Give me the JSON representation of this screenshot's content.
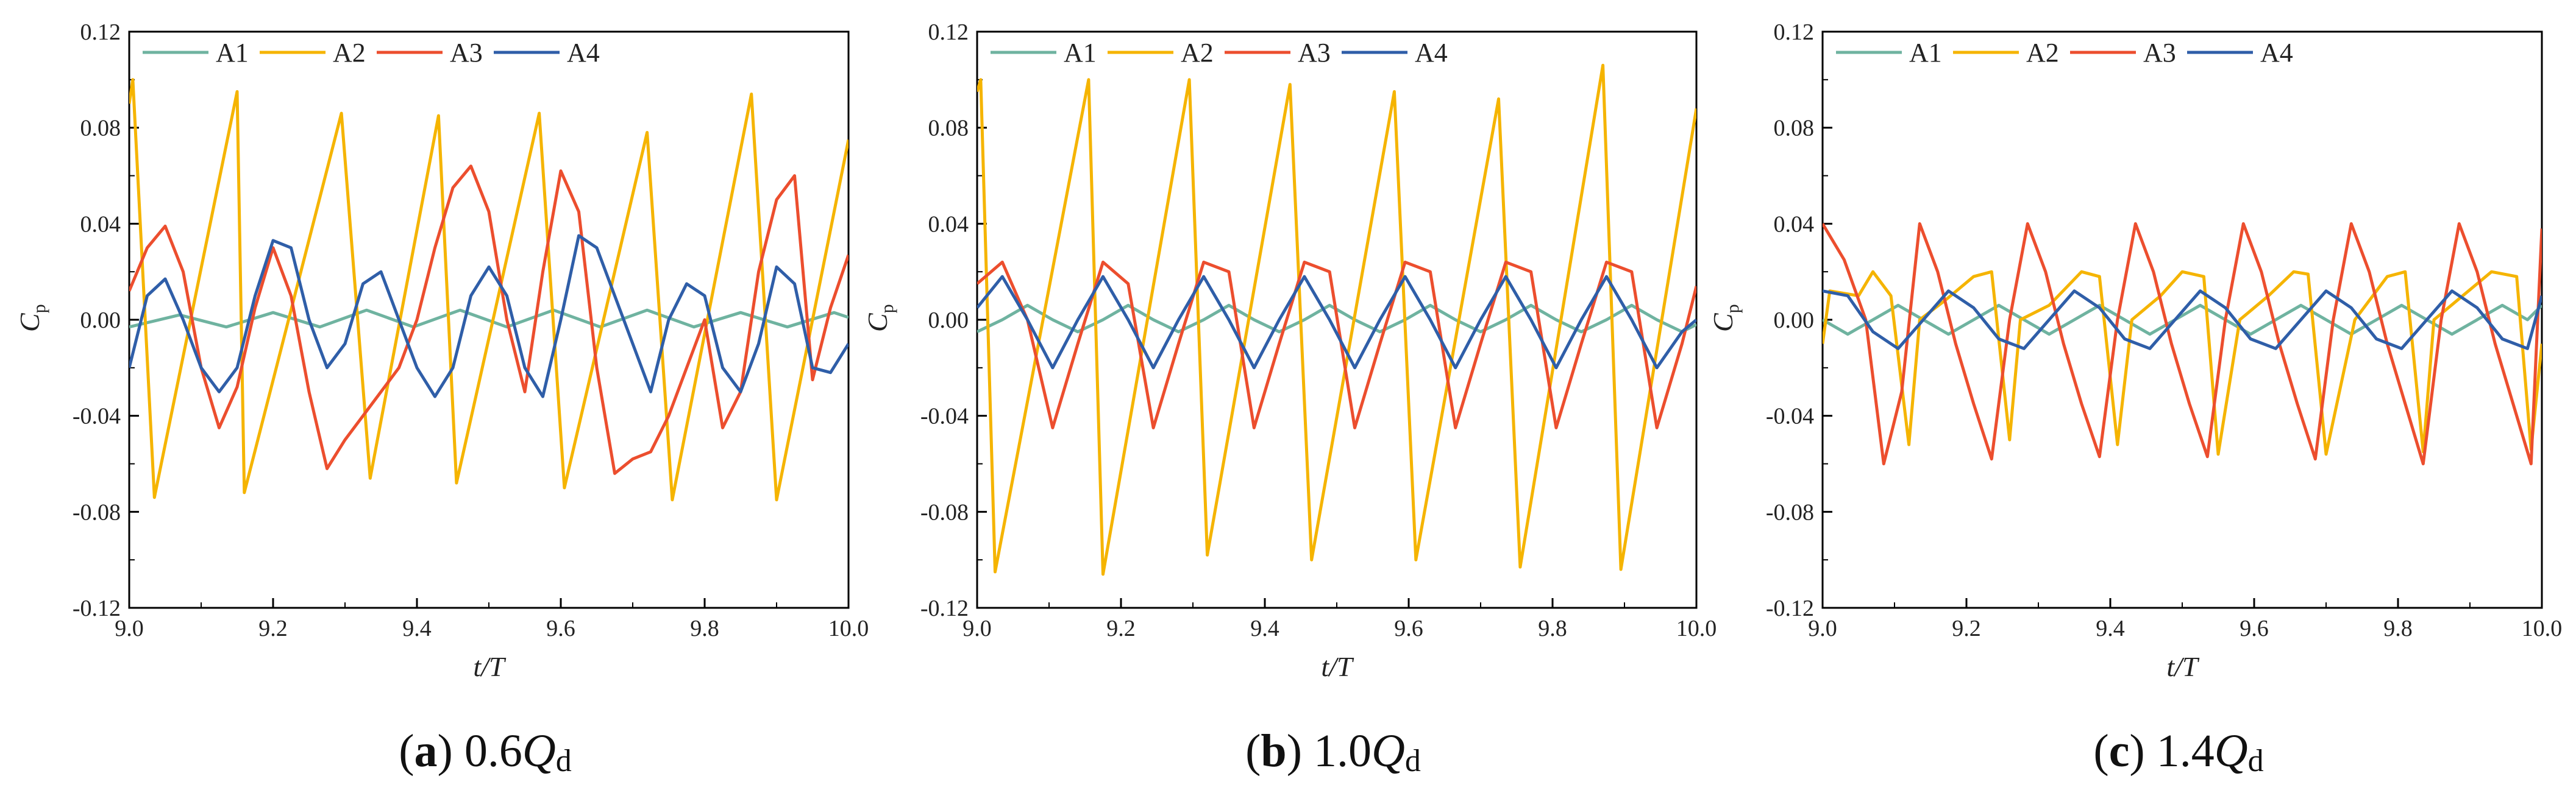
{
  "colors": {
    "A1": "#6fb3a0",
    "A2": "#f5b400",
    "A3": "#ec4e2e",
    "A4": "#2f5ea8"
  },
  "chart_data": [
    {
      "type": "line",
      "caption_letter": "a",
      "caption_value": "0.6",
      "caption_symbol": "Q",
      "caption_sub": "d",
      "xlabel": "t/T",
      "ylabel_main": "C",
      "ylabel_sub": "p",
      "xlim": [
        9.0,
        10.0
      ],
      "ylim": [
        -0.12,
        0.12
      ],
      "xticks": [
        "9.0",
        "9.2",
        "9.4",
        "9.6",
        "9.8",
        "10.0"
      ],
      "yticks": [
        "0.12",
        "0.08",
        "0.04",
        "0.00",
        "-0.04",
        "-0.08",
        "-0.12"
      ],
      "series": [
        {
          "name": "A1",
          "x": [
            9.0,
            9.07,
            9.135,
            9.2,
            9.265,
            9.33,
            9.395,
            9.46,
            9.525,
            9.59,
            9.655,
            9.72,
            9.785,
            9.85,
            9.915,
            9.98,
            10.0
          ],
          "values": [
            -0.003,
            0.002,
            -0.003,
            0.003,
            -0.003,
            0.004,
            -0.003,
            0.004,
            -0.003,
            0.004,
            -0.003,
            0.004,
            -0.003,
            0.003,
            -0.003,
            0.003,
            0.001
          ]
        },
        {
          "name": "A2",
          "x": [
            9.0,
            9.005,
            9.035,
            9.15,
            9.16,
            9.295,
            9.335,
            9.43,
            9.455,
            9.57,
            9.605,
            9.72,
            9.755,
            9.865,
            9.9,
            10.0
          ],
          "values": [
            0.09,
            0.1,
            -0.074,
            0.095,
            -0.072,
            0.086,
            -0.066,
            0.085,
            -0.068,
            0.086,
            -0.07,
            0.078,
            -0.075,
            0.094,
            -0.075,
            0.075
          ]
        },
        {
          "name": "A3",
          "x": [
            9.0,
            9.025,
            9.05,
            9.075,
            9.1,
            9.125,
            9.15,
            9.175,
            9.2,
            9.225,
            9.25,
            9.275,
            9.3,
            9.325,
            9.35,
            9.375,
            9.4,
            9.425,
            9.45,
            9.475,
            9.5,
            9.525,
            9.55,
            9.575,
            9.6,
            9.625,
            9.65,
            9.675,
            9.7,
            9.725,
            9.75,
            9.775,
            9.8,
            9.825,
            9.85,
            9.875,
            9.9,
            9.925,
            9.95,
            9.975,
            10.0
          ],
          "values": [
            0.012,
            0.03,
            0.039,
            0.02,
            -0.02,
            -0.045,
            -0.028,
            0.005,
            0.03,
            0.01,
            -0.03,
            -0.062,
            -0.05,
            -0.04,
            -0.03,
            -0.02,
            0.0,
            0.03,
            0.055,
            0.064,
            0.045,
            0.0,
            -0.03,
            0.02,
            0.062,
            0.045,
            -0.02,
            -0.064,
            -0.058,
            -0.055,
            -0.04,
            -0.02,
            0.0,
            -0.045,
            -0.03,
            0.02,
            0.05,
            0.06,
            -0.025,
            0.005,
            0.027
          ]
        },
        {
          "name": "A4",
          "x": [
            9.0,
            9.025,
            9.05,
            9.075,
            9.1,
            9.125,
            9.15,
            9.175,
            9.2,
            9.225,
            9.25,
            9.275,
            9.3,
            9.325,
            9.35,
            9.375,
            9.4,
            9.425,
            9.45,
            9.475,
            9.5,
            9.525,
            9.55,
            9.575,
            9.6,
            9.625,
            9.65,
            9.675,
            9.7,
            9.725,
            9.75,
            9.775,
            9.8,
            9.825,
            9.85,
            9.875,
            9.9,
            9.925,
            9.95,
            9.975,
            10.0
          ],
          "values": [
            -0.02,
            0.01,
            0.017,
            0.0,
            -0.02,
            -0.03,
            -0.02,
            0.01,
            0.033,
            0.03,
            0.0,
            -0.02,
            -0.01,
            0.015,
            0.02,
            0.0,
            -0.02,
            -0.032,
            -0.02,
            0.01,
            0.022,
            0.01,
            -0.02,
            -0.032,
            0.0,
            0.035,
            0.03,
            0.01,
            -0.01,
            -0.03,
            0.0,
            0.015,
            0.01,
            -0.02,
            -0.03,
            -0.01,
            0.022,
            0.015,
            -0.02,
            -0.022,
            -0.01
          ]
        }
      ]
    },
    {
      "type": "line",
      "caption_letter": "b",
      "caption_value": "1.0",
      "caption_symbol": "Q",
      "caption_sub": "d",
      "xlabel": "t/T",
      "ylabel_main": "C",
      "ylabel_sub": "p",
      "xlim": [
        9.0,
        10.0
      ],
      "ylim": [
        -0.12,
        0.12
      ],
      "xticks": [
        "9.0",
        "9.2",
        "9.4",
        "9.6",
        "9.8",
        "10.0"
      ],
      "yticks": [
        "0.12",
        "0.08",
        "0.04",
        "0.00",
        "-0.04",
        "-0.08",
        "-0.12"
      ],
      "series": [
        {
          "name": "A1",
          "x": [
            9.0,
            9.035,
            9.07,
            9.105,
            9.14,
            9.175,
            9.21,
            9.245,
            9.28,
            9.315,
            9.35,
            9.385,
            9.42,
            9.455,
            9.49,
            9.525,
            9.56,
            9.595,
            9.63,
            9.665,
            9.7,
            9.735,
            9.77,
            9.805,
            9.84,
            9.875,
            9.91,
            9.945,
            9.98,
            10.0
          ],
          "values": [
            -0.005,
            0.0,
            0.006,
            0.0,
            -0.005,
            0.0,
            0.006,
            0.0,
            -0.005,
            0.0,
            0.006,
            0.0,
            -0.005,
            0.0,
            0.006,
            0.0,
            -0.005,
            0.0,
            0.006,
            0.0,
            -0.005,
            0.0,
            0.006,
            0.0,
            -0.005,
            0.0,
            0.006,
            0.0,
            -0.005,
            -0.002
          ]
        },
        {
          "name": "A2",
          "x": [
            9.0,
            9.005,
            9.025,
            9.155,
            9.175,
            9.295,
            9.32,
            9.435,
            9.465,
            9.58,
            9.61,
            9.725,
            9.755,
            9.87,
            9.895,
            10.0
          ],
          "values": [
            0.095,
            0.1,
            -0.105,
            0.1,
            -0.106,
            0.1,
            -0.098,
            0.098,
            -0.1,
            0.095,
            -0.1,
            0.092,
            -0.103,
            0.106,
            -0.104,
            0.088
          ]
        },
        {
          "name": "A3",
          "x": [
            9.0,
            9.035,
            9.07,
            9.105,
            9.14,
            9.175,
            9.21,
            9.245,
            9.28,
            9.315,
            9.35,
            9.385,
            9.42,
            9.455,
            9.49,
            9.525,
            9.56,
            9.595,
            9.63,
            9.665,
            9.7,
            9.735,
            9.77,
            9.805,
            9.84,
            9.875,
            9.91,
            9.945,
            9.98,
            10.0
          ],
          "values": [
            0.015,
            0.024,
            0.0,
            -0.045,
            -0.01,
            0.024,
            0.015,
            -0.045,
            -0.01,
            0.024,
            0.02,
            -0.045,
            -0.01,
            0.024,
            0.02,
            -0.045,
            -0.01,
            0.024,
            0.02,
            -0.045,
            -0.01,
            0.024,
            0.02,
            -0.045,
            -0.01,
            0.024,
            0.02,
            -0.045,
            -0.01,
            0.014
          ]
        },
        {
          "name": "A4",
          "x": [
            9.0,
            9.035,
            9.07,
            9.105,
            9.14,
            9.175,
            9.21,
            9.245,
            9.28,
            9.315,
            9.35,
            9.385,
            9.42,
            9.455,
            9.49,
            9.525,
            9.56,
            9.595,
            9.63,
            9.665,
            9.7,
            9.735,
            9.77,
            9.805,
            9.84,
            9.875,
            9.91,
            9.945,
            9.98,
            10.0
          ],
          "values": [
            0.005,
            0.018,
            0.0,
            -0.02,
            0.0,
            0.018,
            0.0,
            -0.02,
            0.0,
            0.018,
            0.0,
            -0.02,
            0.0,
            0.018,
            0.0,
            -0.02,
            0.0,
            0.018,
            0.0,
            -0.02,
            0.0,
            0.018,
            0.0,
            -0.02,
            0.0,
            0.018,
            0.0,
            -0.02,
            -0.005,
            0.0
          ]
        }
      ]
    },
    {
      "type": "line",
      "caption_letter": "c",
      "caption_value": "1.4",
      "caption_symbol": "Q",
      "caption_sub": "d",
      "xlabel": "t/T",
      "ylabel_main": "C",
      "ylabel_sub": "p",
      "xlim": [
        9.0,
        10.0
      ],
      "ylim": [
        -0.12,
        0.12
      ],
      "xticks": [
        "9.0",
        "9.2",
        "9.4",
        "9.6",
        "9.8",
        "10.0"
      ],
      "yticks": [
        "0.12",
        "0.08",
        "0.04",
        "0.00",
        "-0.04",
        "-0.08",
        "-0.12"
      ],
      "series": [
        {
          "name": "A1",
          "x": [
            9.0,
            9.035,
            9.07,
            9.105,
            9.14,
            9.175,
            9.21,
            9.245,
            9.28,
            9.315,
            9.35,
            9.385,
            9.42,
            9.455,
            9.49,
            9.525,
            9.56,
            9.595,
            9.63,
            9.665,
            9.7,
            9.735,
            9.77,
            9.805,
            9.84,
            9.875,
            9.91,
            9.945,
            9.98,
            10.0
          ],
          "values": [
            0.0,
            -0.006,
            0.0,
            0.006,
            0.0,
            -0.006,
            0.0,
            0.006,
            0.0,
            -0.006,
            0.0,
            0.006,
            0.0,
            -0.006,
            0.0,
            0.006,
            0.0,
            -0.006,
            0.0,
            0.006,
            0.0,
            -0.006,
            0.0,
            0.006,
            0.0,
            -0.006,
            0.0,
            0.006,
            0.0,
            0.006
          ]
        },
        {
          "name": "A2",
          "x": [
            9.0,
            9.01,
            9.05,
            9.07,
            9.095,
            9.12,
            9.135,
            9.17,
            9.21,
            9.235,
            9.26,
            9.275,
            9.315,
            9.36,
            9.385,
            9.41,
            9.43,
            9.47,
            9.5,
            9.53,
            9.55,
            9.58,
            9.62,
            9.655,
            9.675,
            9.7,
            9.74,
            9.785,
            9.81,
            9.835,
            9.85,
            9.89,
            9.93,
            9.965,
            9.985,
            10.0
          ],
          "values": [
            -0.01,
            0.012,
            0.01,
            0.02,
            0.01,
            -0.052,
            0.0,
            0.008,
            0.018,
            0.02,
            -0.05,
            0.0,
            0.006,
            0.02,
            0.018,
            -0.052,
            0.0,
            0.01,
            0.02,
            0.018,
            -0.056,
            0.0,
            0.01,
            0.02,
            0.019,
            -0.056,
            0.0,
            0.018,
            0.02,
            -0.055,
            0.0,
            0.01,
            0.02,
            0.018,
            -0.054,
            -0.01
          ]
        },
        {
          "name": "A3",
          "x": [
            9.0,
            9.03,
            9.06,
            9.085,
            9.11,
            9.135,
            9.16,
            9.185,
            9.21,
            9.235,
            9.26,
            9.285,
            9.31,
            9.335,
            9.36,
            9.385,
            9.41,
            9.435,
            9.46,
            9.485,
            9.51,
            9.535,
            9.56,
            9.585,
            9.61,
            9.635,
            9.66,
            9.685,
            9.71,
            9.735,
            9.76,
            9.785,
            9.81,
            9.835,
            9.86,
            9.885,
            9.91,
            9.935,
            9.96,
            9.985,
            10.0
          ],
          "values": [
            0.04,
            0.025,
            0.0,
            -0.06,
            -0.03,
            0.04,
            0.02,
            -0.01,
            -0.035,
            -0.058,
            0.0,
            0.04,
            0.02,
            -0.01,
            -0.035,
            -0.057,
            0.0,
            0.04,
            0.02,
            -0.01,
            -0.035,
            -0.057,
            0.0,
            0.04,
            0.02,
            -0.01,
            -0.035,
            -0.058,
            0.0,
            0.04,
            0.02,
            -0.01,
            -0.035,
            -0.06,
            0.0,
            0.04,
            0.02,
            -0.01,
            -0.035,
            -0.06,
            0.038
          ]
        },
        {
          "name": "A4",
          "x": [
            9.0,
            9.035,
            9.07,
            9.105,
            9.14,
            9.175,
            9.21,
            9.245,
            9.28,
            9.315,
            9.35,
            9.385,
            9.42,
            9.455,
            9.49,
            9.525,
            9.56,
            9.595,
            9.63,
            9.665,
            9.7,
            9.735,
            9.77,
            9.805,
            9.84,
            9.875,
            9.91,
            9.945,
            9.98,
            10.0
          ],
          "values": [
            0.012,
            0.01,
            -0.005,
            -0.012,
            0.0,
            0.012,
            0.005,
            -0.008,
            -0.012,
            0.0,
            0.012,
            0.005,
            -0.008,
            -0.012,
            0.0,
            0.012,
            0.005,
            -0.008,
            -0.012,
            0.0,
            0.012,
            0.005,
            -0.008,
            -0.012,
            0.0,
            0.012,
            0.005,
            -0.008,
            -0.012,
            0.01
          ]
        }
      ]
    }
  ]
}
